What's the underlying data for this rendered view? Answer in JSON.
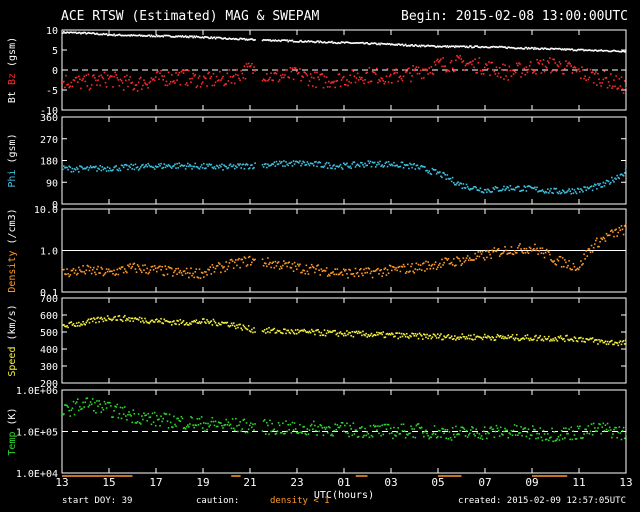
{
  "header": {
    "title": "ACE RTSW (Estimated) MAG & SWEPAM",
    "begin": "Begin: 2015-02-08 13:00:00UTC"
  },
  "footer": {
    "start_doy": "start DOY:  39",
    "caution": "caution:",
    "density_note": "density < 1",
    "created": "created: 2015-02-09 12:57:05UTC"
  },
  "colors": {
    "bt": "#ffffff",
    "bz": "#ff2a2a",
    "phi": "#3fc0e0",
    "density": "#ff9a2a",
    "speed": "#f4f040",
    "temp": "#2ed62e"
  },
  "chart_data": {
    "type": "scatter",
    "x_label": "UTC(hours)",
    "x_ticks": [
      "13",
      "15",
      "17",
      "19",
      "21",
      "23",
      "01",
      "03",
      "05",
      "07",
      "09",
      "11",
      "13"
    ],
    "x_range_hours": [
      0,
      24
    ],
    "panels": [
      {
        "id": "mag",
        "ylabel_parts": [
          "Bt",
          "Bz",
          "(gsm)"
        ],
        "ylim": [
          -10,
          10
        ],
        "y_ticks": [
          "10",
          "5",
          "0",
          "-5",
          "-10"
        ],
        "ref_line": 0,
        "series": [
          {
            "name": "Bt",
            "color": "#ffffff",
            "x": [
              0,
              1,
              2,
              3,
              4,
              5,
              6,
              7,
              8,
              9,
              10,
              11,
              12,
              13,
              14,
              15,
              16,
              17,
              18,
              19,
              20,
              21,
              22,
              23,
              24
            ],
            "y": [
              9.6,
              9.4,
              9.0,
              8.8,
              8.7,
              8.6,
              8.4,
              8.0,
              7.8,
              7.6,
              7.4,
              7.2,
              7.0,
              6.8,
              6.6,
              6.3,
              6.1,
              6.0,
              6.0,
              5.8,
              5.6,
              5.4,
              5.2,
              5.0,
              4.9
            ]
          },
          {
            "name": "Bz",
            "color": "#ff2a2a",
            "x": [
              0,
              1,
              2,
              3,
              4,
              5,
              6,
              7,
              8,
              9,
              10,
              11,
              12,
              13,
              14,
              15,
              16,
              17,
              18,
              19,
              20,
              21,
              22,
              23,
              24
            ],
            "y": [
              -2.5,
              -3.0,
              -2.0,
              -3.5,
              -2.0,
              -1.5,
              -2.5,
              -2.0,
              0.5,
              -1.5,
              -1.0,
              -2.5,
              -2.0,
              -1.0,
              -1.5,
              -0.5,
              1.5,
              2.0,
              1.0,
              -0.5,
              1.0,
              1.5,
              -0.5,
              -2.0,
              -4.0
            ]
          }
        ]
      },
      {
        "id": "phi",
        "ylabel_parts": [
          "Phi",
          "(gsm)"
        ],
        "ylim": [
          0,
          360
        ],
        "y_ticks": [
          "360",
          "270",
          "180",
          "90",
          "0"
        ],
        "series": [
          {
            "name": "Phi",
            "color": "#3fc0e0",
            "x": [
              0,
              1,
              2,
              3,
              4,
              5,
              6,
              7,
              8,
              9,
              10,
              11,
              12,
              13,
              14,
              15,
              16,
              17,
              18,
              19,
              20,
              21,
              22,
              23,
              24
            ],
            "y": [
              150,
              148,
              152,
              155,
              160,
              162,
              158,
              155,
              162,
              168,
              172,
              165,
              160,
              170,
              168,
              158,
              130,
              80,
              60,
              70,
              65,
              55,
              60,
              80,
              140
            ]
          }
        ]
      },
      {
        "id": "density",
        "ylabel_parts": [
          "Density",
          "(/cm3)"
        ],
        "ylim": [
          0.1,
          10
        ],
        "log_scale": true,
        "y_ticks": [
          "10.0",
          "1.0",
          "0.1"
        ],
        "series": [
          {
            "name": "Density",
            "color": "#ff9a2a",
            "x": [
              0,
              1,
              2,
              3,
              4,
              5,
              6,
              7,
              8,
              9,
              10,
              11,
              12,
              13,
              14,
              15,
              16,
              17,
              18,
              19,
              20,
              21,
              22,
              23,
              24
            ],
            "y": [
              0.3,
              0.35,
              0.3,
              0.4,
              0.35,
              0.3,
              0.3,
              0.45,
              0.6,
              0.5,
              0.4,
              0.35,
              0.3,
              0.3,
              0.35,
              0.4,
              0.5,
              0.6,
              0.8,
              1.1,
              1.2,
              0.6,
              0.4,
              2.0,
              3.5
            ]
          }
        ]
      },
      {
        "id": "speed",
        "ylabel_parts": [
          "Speed",
          "(km/s)"
        ],
        "ylim": [
          200,
          700
        ],
        "y_ticks": [
          "700",
          "600",
          "500",
          "400",
          "300",
          "200"
        ],
        "series": [
          {
            "name": "Speed",
            "color": "#f4f040",
            "x": [
              0,
              1,
              2,
              3,
              4,
              5,
              6,
              7,
              8,
              9,
              10,
              11,
              12,
              13,
              14,
              15,
              16,
              17,
              18,
              19,
              20,
              21,
              22,
              23,
              24
            ],
            "y": [
              540,
              560,
              590,
              580,
              570,
              560,
              565,
              555,
              520,
              510,
              505,
              500,
              495,
              490,
              485,
              480,
              478,
              475,
              475,
              472,
              470,
              468,
              465,
              445,
              440
            ]
          }
        ]
      },
      {
        "id": "temp",
        "ylabel_parts": [
          "Temp",
          "(K)"
        ],
        "ylim": [
          10000,
          1000000
        ],
        "log_scale": true,
        "y_ticks": [
          "1.0E+06",
          "1.0E+05",
          "1.0E+04"
        ],
        "ref_line": 100000,
        "series": [
          {
            "name": "Temp",
            "color": "#2ed62e",
            "x": [
              0,
              1,
              2,
              3,
              4,
              5,
              6,
              7,
              8,
              9,
              10,
              11,
              12,
              13,
              14,
              15,
              16,
              17,
              18,
              19,
              20,
              21,
              22,
              23,
              24
            ],
            "y": [
              300000,
              500000,
              350000,
              250000,
              200000,
              180000,
              160000,
              150000,
              140000,
              130000,
              120000,
              125000,
              115000,
              110000,
              105000,
              110000,
              100000,
              95000,
              100000,
              105000,
              95000,
              90000,
              100000,
              120000,
              90000
            ]
          }
        ]
      }
    ]
  }
}
